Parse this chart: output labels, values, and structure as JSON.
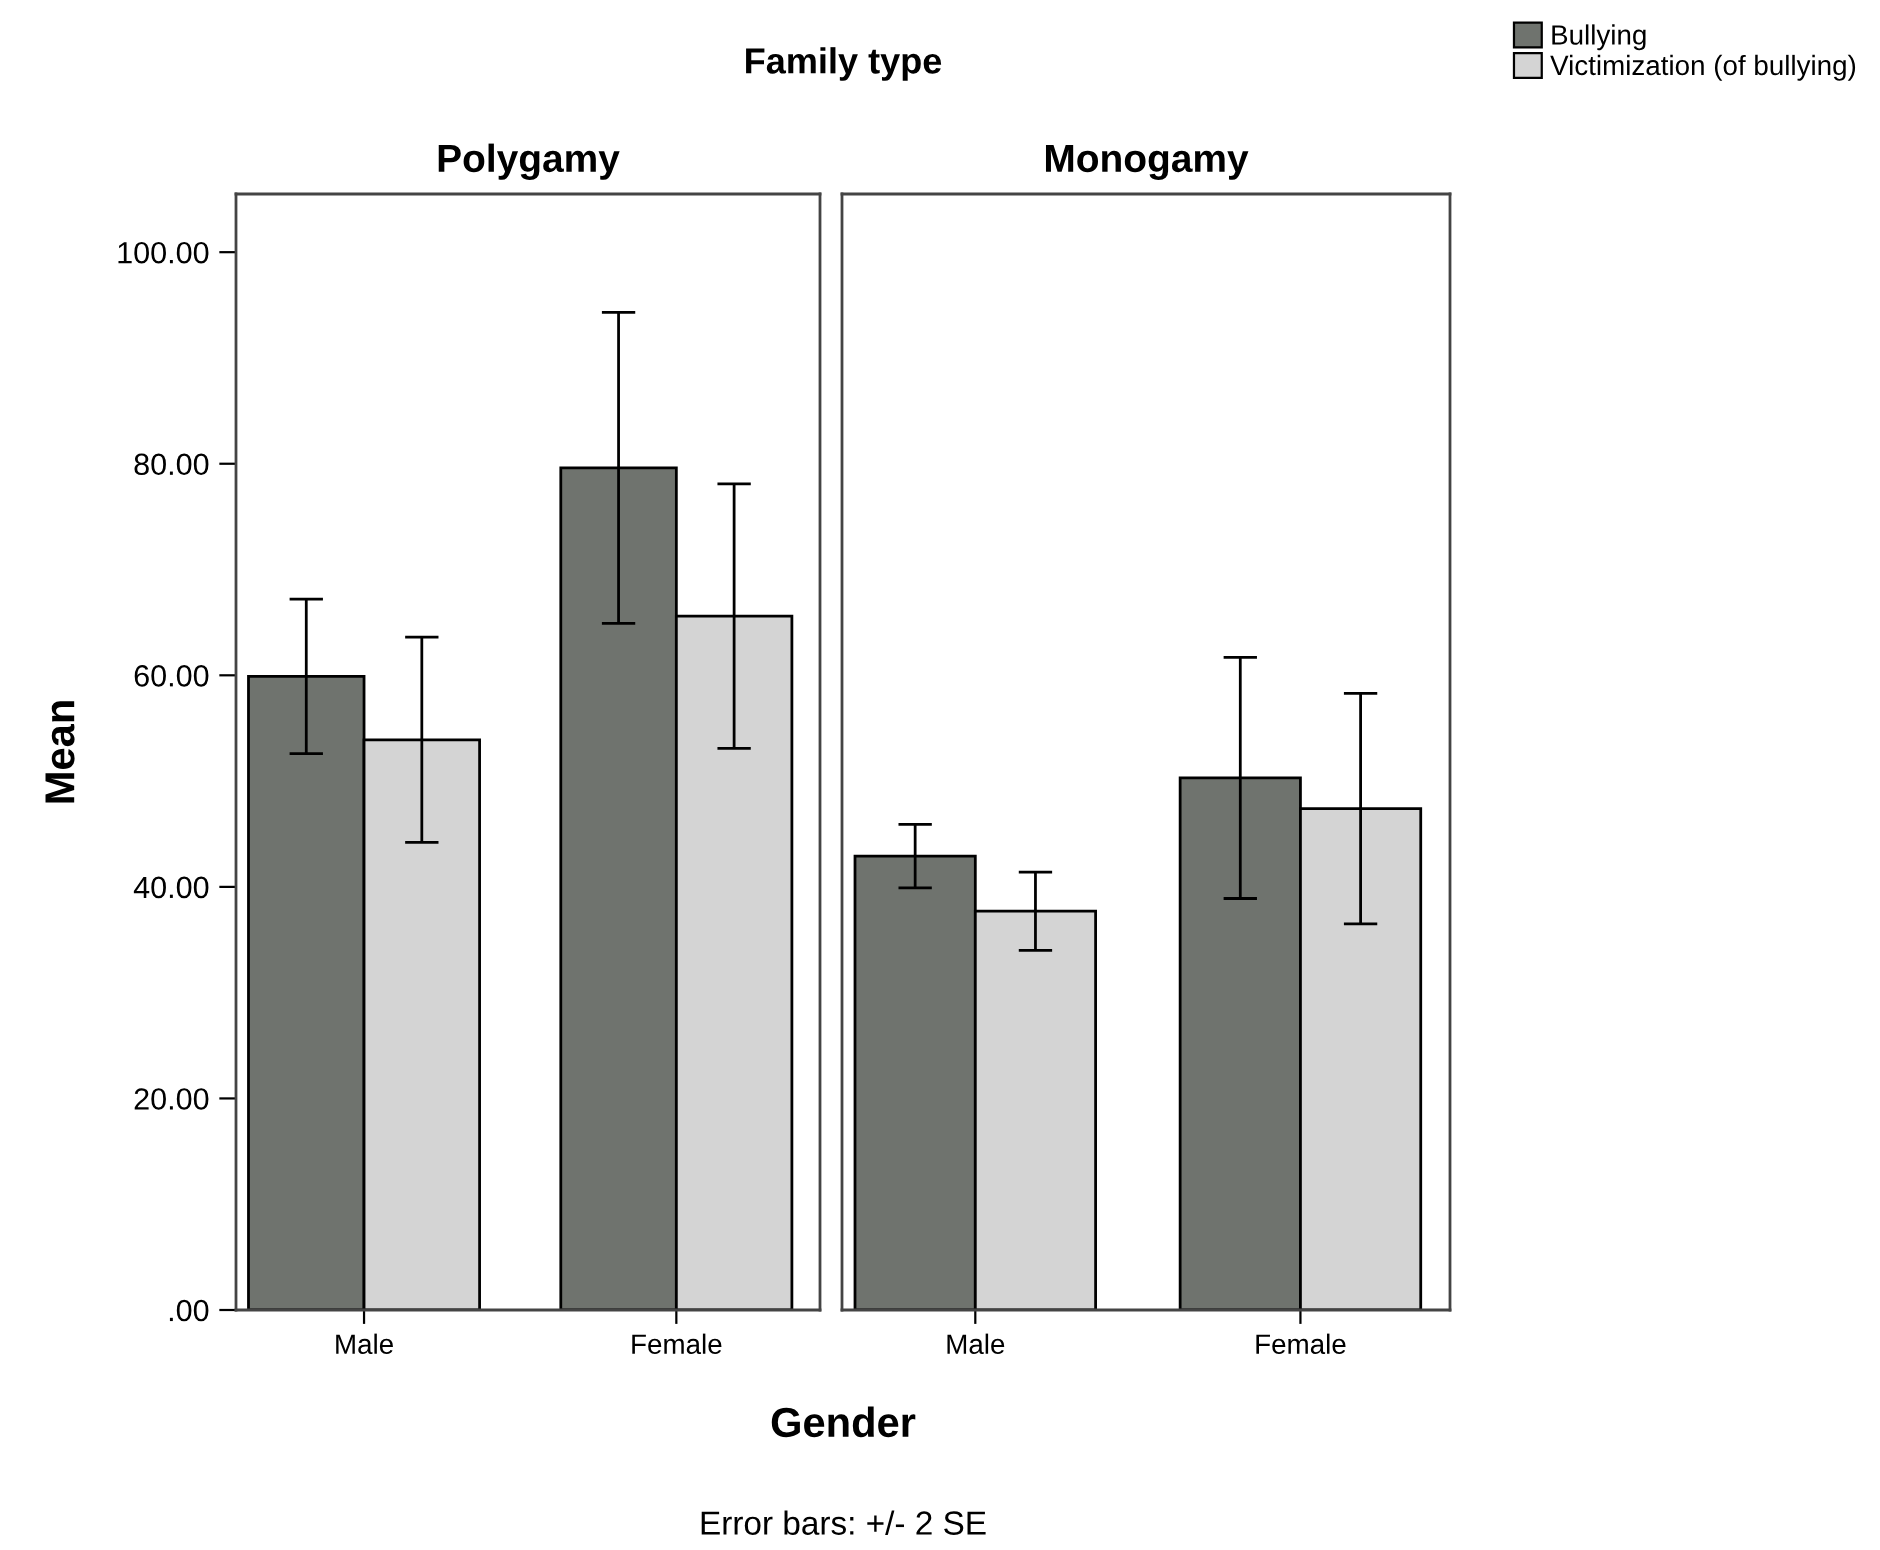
{
  "chart_data": [
    {
      "type": "bar",
      "title": "Family type",
      "subtitle": "Polygamy",
      "xlabel": "Gender",
      "ylabel": "Mean",
      "annotations": [
        "Error bars: +/- 2 SE"
      ],
      "categories": [
        "Male",
        "Female"
      ],
      "series": [
        {
          "name": "Bullying",
          "color": "#6f736e",
          "values": [
            59.9,
            79.6
          ],
          "errors": [
            7.3,
            14.7
          ]
        },
        {
          "name": "Victimization (of bullying)",
          "color": "#d4d4d4",
          "values": [
            53.9,
            65.6
          ],
          "errors": [
            9.7,
            12.5
          ]
        }
      ],
      "ylim": [
        0,
        105.5
      ],
      "yticks": [
        {
          "value": 0,
          "label": ".00"
        },
        {
          "value": 20,
          "label": "20.00"
        },
        {
          "value": 40,
          "label": "40.00"
        },
        {
          "value": 60,
          "label": "60.00"
        },
        {
          "value": 80,
          "label": "80.00"
        },
        {
          "value": 100,
          "label": "100.00"
        }
      ],
      "legend": "top right",
      "grid": false
    },
    {
      "type": "bar",
      "subtitle": "Monogamy",
      "categories": [
        "Male",
        "Female"
      ],
      "series": [
        {
          "color": "#6f736e",
          "values": [
            42.9,
            50.3
          ],
          "errors": [
            3.0,
            11.4
          ]
        },
        {
          "color": "#d4d4d4",
          "values": [
            37.7,
            47.4
          ],
          "errors": [
            3.7,
            10.9
          ]
        }
      ],
      "ylim": [
        0,
        105.5
      ],
      "tick_labels": "x",
      "grid": false
    }
  ]
}
